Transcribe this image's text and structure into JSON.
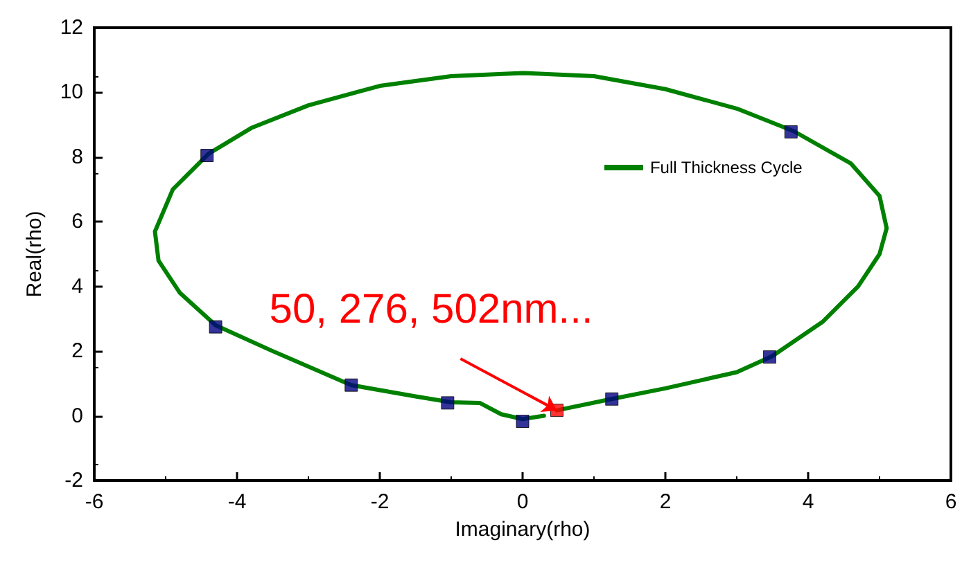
{
  "chart_data": {
    "type": "line",
    "xlabel": "Imaginary(rho)",
    "ylabel": "Real(rho)",
    "xlim": [
      -6,
      6
    ],
    "xticks": [
      -6,
      -4,
      -2,
      0,
      2,
      4,
      6
    ],
    "ylim": [
      -2,
      12
    ],
    "yticks": [
      -2,
      0,
      2,
      4,
      6,
      8,
      10,
      12
    ],
    "grid": false,
    "legend": "top right",
    "line_style": "solid",
    "series": [
      {
        "name": "Full Thickness Cycle",
        "color": "#008000",
        "marker": "none",
        "x": [
          0.48,
          1.2,
          2,
          3,
          3.5,
          4.2,
          4.7,
          5,
          5.1,
          5,
          4.6,
          3.8,
          3,
          2,
          1,
          0,
          -1,
          -2,
          -3,
          -3.8,
          -4.4,
          -4.9,
          -5.15,
          -5.1,
          -4.8,
          -4.3,
          -3.5,
          -2.4,
          -1.5,
          -1,
          -0.6,
          -0.3,
          0,
          0.3
        ],
        "values": [
          0.17,
          0.5,
          0.85,
          1.35,
          1.85,
          2.9,
          4,
          5,
          5.8,
          6.8,
          7.8,
          8.8,
          9.5,
          10.1,
          10.5,
          10.6,
          10.5,
          10.2,
          9.6,
          8.9,
          8.1,
          7,
          5.7,
          4.8,
          3.8,
          2.8,
          2,
          0.95,
          0.6,
          0.42,
          0.4,
          0.05,
          -0.1,
          0
        ]
      },
      {
        "type": "scatter",
        "color": "#000080",
        "marker": "square",
        "x": [
          -4.42,
          3.76,
          -4.3,
          -2.4,
          -1.05,
          0,
          1.25,
          3.46
        ],
        "values": [
          8.05,
          8.78,
          2.75,
          0.95,
          0.4,
          -0.17,
          0.52,
          1.82
        ]
      },
      {
        "type": "scatter",
        "color": "#ff0000",
        "marker": "square",
        "x": [
          0.48
        ],
        "values": [
          0.17
        ]
      }
    ],
    "annotations": [
      {
        "text": "50, 276, 502nm...",
        "x": 0.48,
        "y": 0.17
      }
    ]
  }
}
